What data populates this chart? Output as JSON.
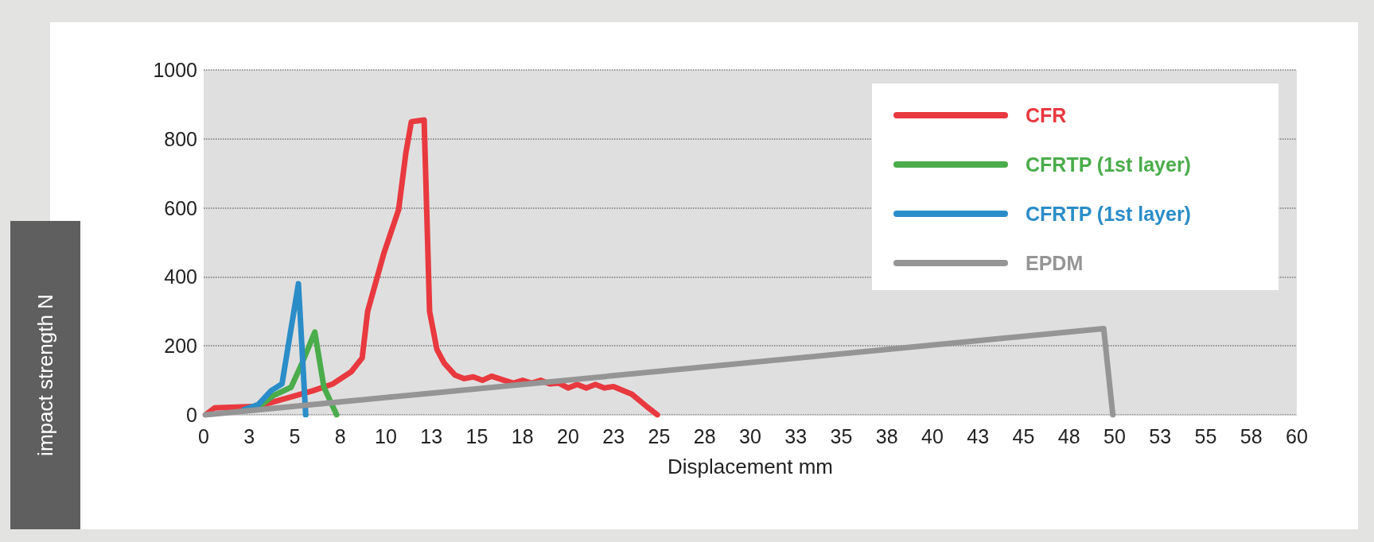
{
  "chart_data": {
    "type": "line",
    "xlabel": "Displacement mm",
    "ylabel": "impact strength N",
    "xlim": [
      0,
      60
    ],
    "xticks": [
      0,
      {
        "value": 2.5,
        "label": "3"
      },
      5,
      {
        "value": 7.5,
        "label": "8"
      },
      10,
      {
        "value": 12.5,
        "label": "13"
      },
      15,
      {
        "value": 17.5,
        "label": "18"
      },
      20,
      {
        "value": 22.5,
        "label": "23"
      },
      25,
      {
        "value": 27.5,
        "label": "28"
      },
      30,
      {
        "value": 32.5,
        "label": "33"
      },
      35,
      {
        "value": 37.5,
        "label": "38"
      },
      40,
      {
        "value": 42.5,
        "label": "43"
      },
      45,
      {
        "value": 47.5,
        "label": "48"
      },
      50,
      {
        "value": 52.5,
        "label": "53"
      },
      55,
      {
        "value": 57.5,
        "label": "58"
      },
      60
    ],
    "ylim": [
      0,
      1000
    ],
    "yticks": [
      0,
      200,
      400,
      600,
      800,
      1000
    ],
    "grid": "y",
    "legend": "top right",
    "marker": "none",
    "line_style": "solid",
    "series": [
      {
        "name": "CFR",
        "color": "#e8393f",
        "x": [
          0.1,
          0.6,
          3,
          5,
          6,
          7.1,
          8.1,
          8.7,
          9,
          9.9,
          10.7,
          11.1,
          11.4,
          12.1,
          12.4,
          12.8,
          13.2,
          13.8,
          14.3,
          14.8,
          15.3,
          15.8,
          16.5,
          17,
          17.5,
          18,
          18.5,
          19,
          19.5,
          20,
          20.5,
          21,
          21.5,
          22,
          22.5,
          23.5,
          24.3,
          24.9
        ],
        "values": [
          0,
          20,
          25,
          55,
          70,
          90,
          125,
          165,
          300,
          470,
          595,
          760,
          850,
          855,
          300,
          190,
          150,
          115,
          105,
          110,
          100,
          112,
          100,
          92,
          100,
          92,
          100,
          90,
          92,
          78,
          88,
          78,
          88,
          78,
          82,
          60,
          25,
          0
        ]
      },
      {
        "name": "CFRTP (1st layer)",
        "color": "#4aac4b",
        "x": [
          2.8,
          3.8,
          4.8,
          5.4,
          6.1,
          6.6,
          7.3
        ],
        "values": [
          15,
          55,
          80,
          150,
          240,
          80,
          0
        ]
      },
      {
        "name": "CFRTP (1st layer)",
        "color": "#2b8dc8",
        "x": [
          2.2,
          3,
          3.7,
          4.3,
          5.2,
          5.6
        ],
        "values": [
          15,
          30,
          70,
          90,
          380,
          0
        ]
      },
      {
        "name": "EPDM",
        "color": "#959595",
        "x": [
          0.1,
          49.4,
          49.9
        ],
        "values": [
          0,
          250,
          0
        ]
      }
    ]
  }
}
